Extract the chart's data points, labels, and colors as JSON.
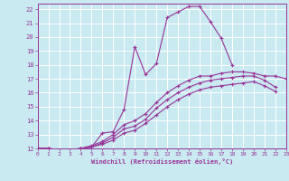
{
  "xlabel": "Windchill (Refroidissement éolien,°C)",
  "bg_color": "#c8eaf0",
  "grid_color": "#ffffff",
  "line_color": "#993399",
  "xlim": [
    0,
    23
  ],
  "ylim": [
    12,
    22.4
  ],
  "xticks": [
    0,
    1,
    2,
    3,
    4,
    5,
    6,
    7,
    8,
    9,
    10,
    11,
    12,
    13,
    14,
    15,
    16,
    17,
    18,
    19,
    20,
    21,
    22,
    23
  ],
  "yticks": [
    12,
    13,
    14,
    15,
    16,
    17,
    18,
    19,
    20,
    21,
    22
  ],
  "series": [
    {
      "x": [
        0,
        1,
        2,
        3,
        4,
        5,
        6,
        7,
        8,
        9,
        10,
        11,
        12,
        13,
        14,
        15,
        16,
        17,
        18
      ],
      "y": [
        12,
        12,
        11.8,
        11.8,
        12.0,
        12.1,
        13.1,
        13.2,
        14.8,
        19.3,
        17.3,
        18.1,
        21.4,
        21.8,
        22.2,
        22.2,
        21.1,
        19.9,
        18.0
      ]
    },
    {
      "x": [
        0,
        1,
        2,
        3,
        4,
        5,
        6,
        7,
        8,
        9,
        10,
        11,
        12,
        13,
        14,
        15,
        16,
        17,
        18,
        19,
        20,
        21,
        22
      ],
      "y": [
        12,
        12,
        11.9,
        11.9,
        12.0,
        12.1,
        12.3,
        12.6,
        13.1,
        13.3,
        13.8,
        14.4,
        15.0,
        15.5,
        15.9,
        16.2,
        16.4,
        16.5,
        16.6,
        16.7,
        16.8,
        16.5,
        16.1
      ]
    },
    {
      "x": [
        0,
        1,
        2,
        3,
        4,
        5,
        6,
        7,
        8,
        9,
        10,
        11,
        12,
        13,
        14,
        15,
        16,
        17,
        18,
        19,
        20,
        21,
        22
      ],
      "y": [
        12,
        12,
        11.9,
        11.9,
        12.0,
        12.1,
        12.4,
        12.8,
        13.4,
        13.6,
        14.1,
        14.9,
        15.5,
        16.0,
        16.4,
        16.7,
        16.9,
        17.0,
        17.1,
        17.2,
        17.2,
        16.9,
        16.4
      ]
    },
    {
      "x": [
        0,
        1,
        2,
        3,
        4,
        5,
        6,
        7,
        8,
        9,
        10,
        11,
        12,
        13,
        14,
        15,
        16,
        17,
        18,
        19,
        20,
        21,
        22,
        23
      ],
      "y": [
        12,
        12,
        11.9,
        11.9,
        12.0,
        12.2,
        12.5,
        13.0,
        13.7,
        14.0,
        14.5,
        15.3,
        16.0,
        16.5,
        16.9,
        17.2,
        17.2,
        17.4,
        17.5,
        17.5,
        17.4,
        17.2,
        17.2,
        17.0
      ]
    }
  ]
}
